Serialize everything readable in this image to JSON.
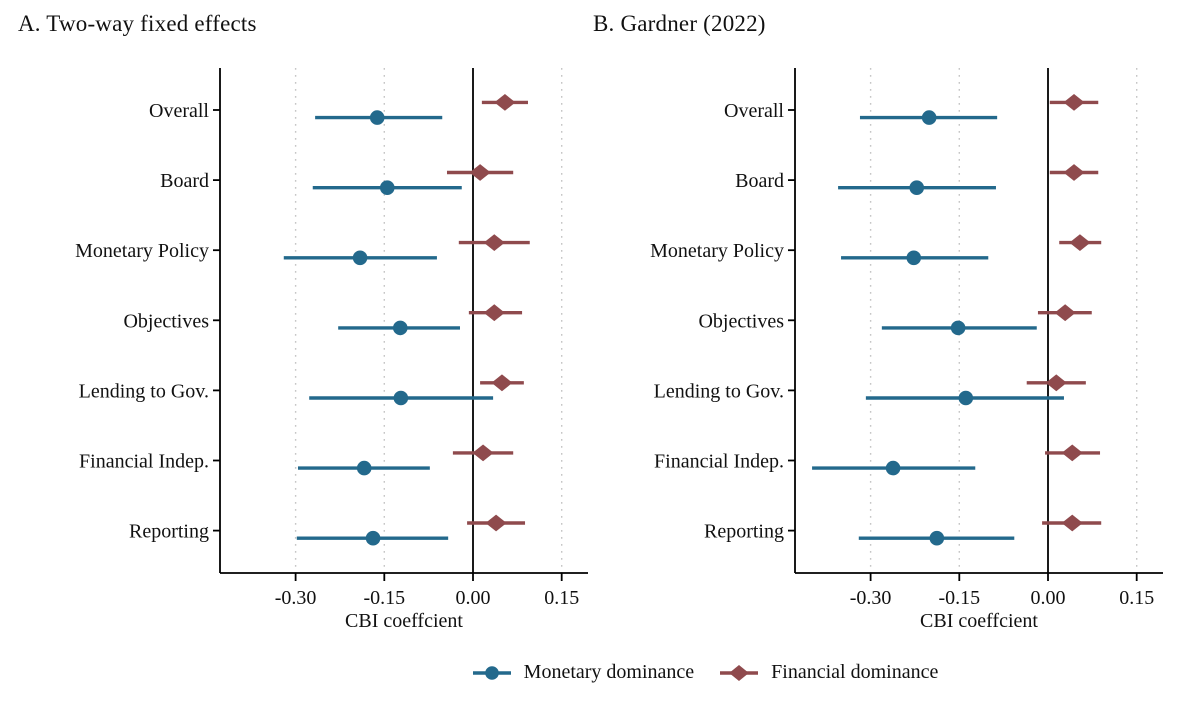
{
  "legend": [
    {
      "label": "Monetary dominance",
      "marker": "circle",
      "color": "#23698C"
    },
    {
      "label": "Financial dominance",
      "marker": "diamond",
      "color": "#8F4A4D"
    }
  ],
  "colors": {
    "monetary_blue": "#23698C",
    "financial_red": "#8F4A4D",
    "gridline_gray": "#c6c6c6",
    "axis_black": "#000000"
  },
  "chart_data": [
    {
      "type": "scatter",
      "subtype": "dot-whisker coefficient plot",
      "title": "A. Two-way fixed effects",
      "xlabel": "CBI coeffcient",
      "categories": [
        "Overall",
        "Board",
        "Monetary Policy",
        "Objectives",
        "Lending to Gov.",
        "Financial Indep.",
        "Reporting"
      ],
      "x_ticks": [
        -0.3,
        -0.15,
        0.0,
        0.15
      ],
      "x_tick_labels": [
        "-0.30",
        "-0.15",
        "0.00",
        "0.15"
      ],
      "xlim": [
        -0.43,
        0.2
      ],
      "grid": "dotted vertical gridlines at nonzero ticks; solid vertical reference line at 0",
      "legend_position": "bottom-center (shared)",
      "series": [
        {
          "name": "Monetary dominance",
          "marker": "circle",
          "color": "#23698C",
          "estimates": [
            -0.162,
            -0.145,
            -0.191,
            -0.123,
            -0.122,
            -0.184,
            -0.169
          ],
          "ci_low": [
            -0.267,
            -0.271,
            -0.32,
            -0.228,
            -0.277,
            -0.296,
            -0.298
          ],
          "ci_high": [
            -0.052,
            -0.019,
            -0.061,
            -0.022,
            0.034,
            -0.073,
            -0.042
          ]
        },
        {
          "name": "Financial dominance",
          "marker": "diamond",
          "color": "#8F4A4D",
          "estimates": [
            0.054,
            0.012,
            0.036,
            0.036,
            0.049,
            0.017,
            0.039
          ],
          "ci_low": [
            0.015,
            -0.044,
            -0.024,
            -0.007,
            0.012,
            -0.034,
            -0.01
          ],
          "ci_high": [
            0.093,
            0.068,
            0.096,
            0.083,
            0.086,
            0.068,
            0.088
          ]
        }
      ]
    },
    {
      "type": "scatter",
      "subtype": "dot-whisker coefficient plot",
      "title": "B. Gardner (2022)",
      "xlabel": "CBI coeffcient",
      "categories": [
        "Overall",
        "Board",
        "Monetary Policy",
        "Objectives",
        "Lending to Gov.",
        "Financial Indep.",
        "Reporting"
      ],
      "x_ticks": [
        -0.3,
        -0.15,
        0.0,
        0.15
      ],
      "x_tick_labels": [
        "-0.30",
        "-0.15",
        "0.00",
        "0.15"
      ],
      "xlim": [
        -0.43,
        0.2
      ],
      "grid": "dotted vertical gridlines at nonzero ticks; solid vertical reference line at 0",
      "legend_position": "bottom-center (shared)",
      "series": [
        {
          "name": "Monetary dominance",
          "marker": "circle",
          "color": "#23698C",
          "estimates": [
            -0.201,
            -0.222,
            -0.227,
            -0.152,
            -0.139,
            -0.262,
            -0.188
          ],
          "ci_low": [
            -0.318,
            -0.355,
            -0.35,
            -0.281,
            -0.308,
            -0.399,
            -0.32
          ],
          "ci_high": [
            -0.086,
            -0.088,
            -0.101,
            -0.019,
            0.027,
            -0.123,
            -0.057
          ]
        },
        {
          "name": "Financial dominance",
          "marker": "diamond",
          "color": "#8F4A4D",
          "estimates": [
            0.044,
            0.044,
            0.054,
            0.029,
            0.014,
            0.041,
            0.041
          ],
          "ci_low": [
            0.003,
            0.003,
            0.019,
            -0.017,
            -0.036,
            -0.005,
            -0.01
          ],
          "ci_high": [
            0.085,
            0.085,
            0.09,
            0.074,
            0.064,
            0.088,
            0.09
          ]
        }
      ]
    }
  ]
}
